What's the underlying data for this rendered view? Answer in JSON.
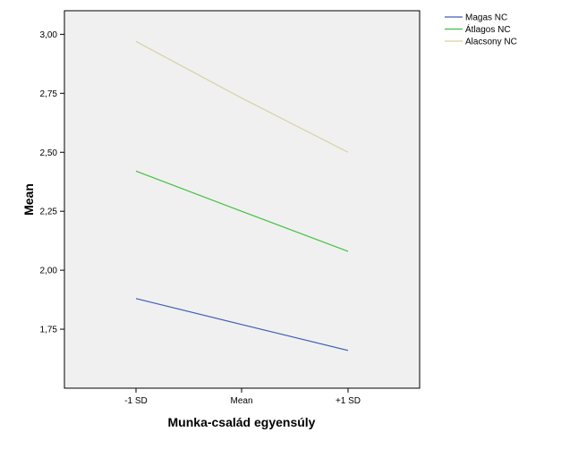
{
  "chart_data": {
    "type": "line",
    "title": "",
    "xlabel": "Munka-család egyensúly",
    "ylabel": "Mean",
    "categories": [
      "-1 SD",
      "Mean",
      "+1 SD"
    ],
    "ylim": [
      1.5,
      3.1
    ],
    "yticks": [
      "1,75",
      "2,00",
      "2,25",
      "2,50",
      "2,75",
      "3,00"
    ],
    "ytick_values": [
      1.75,
      2.0,
      2.25,
      2.5,
      2.75,
      3.0
    ],
    "grid": false,
    "legend_position": "top-right outside",
    "plot_background": "#f0f0f0",
    "series": [
      {
        "name": "Magas NC",
        "color": "#3f5fb5",
        "values": [
          1.88,
          1.77,
          1.66
        ]
      },
      {
        "name": "Átlagos NC",
        "color": "#3ec23e",
        "values": [
          2.42,
          2.25,
          2.08
        ]
      },
      {
        "name": "Alacsony NC",
        "color": "#d6d2a4",
        "values": [
          2.97,
          2.73,
          2.5
        ]
      }
    ]
  }
}
